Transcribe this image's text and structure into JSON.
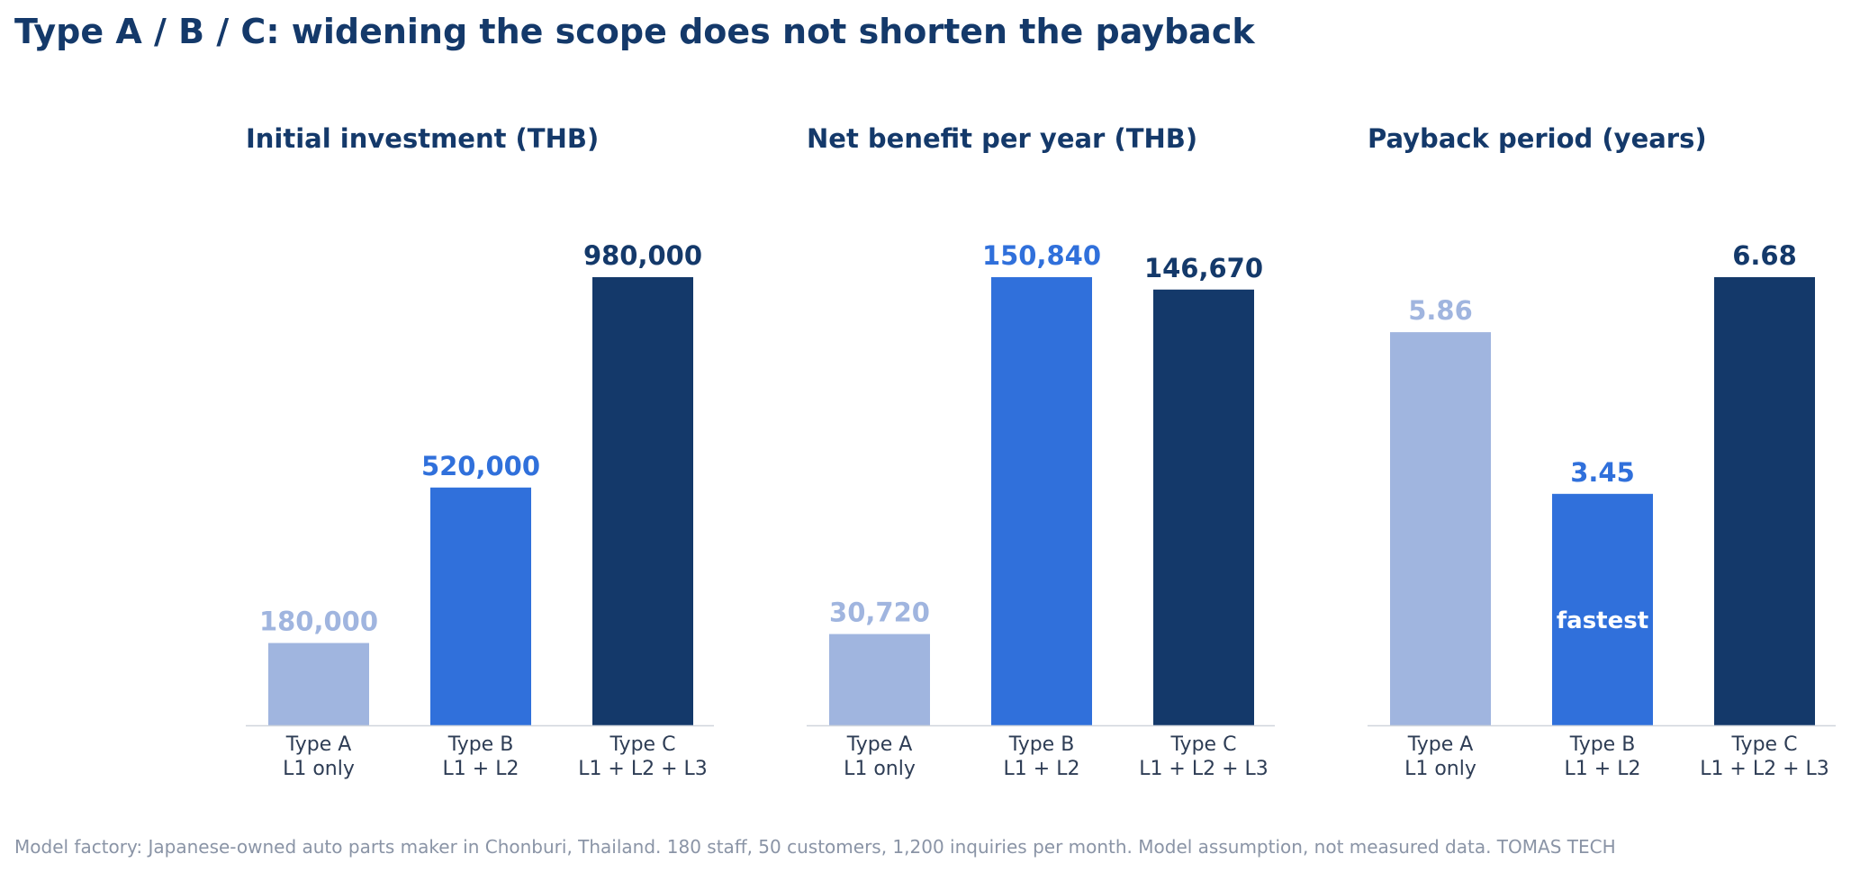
{
  "title": "Type A / B / C: widening the scope does not shorten the payback",
  "footer": "Model factory: Japanese-owned auto parts maker in Chonburi, Thailand. 180 staff, 50 customers, 1,200 inquiries per month. Model assumption, not measured data.   TOMAS TECH",
  "colors": {
    "type_a": "#a0b5df",
    "type_b": "#3070db",
    "type_c": "#14396a",
    "title": "#14396a",
    "axis": "#d0d5dd",
    "footer": "#8a94a6"
  },
  "chart_data": [
    {
      "type": "bar",
      "title": "Initial investment  (THB)",
      "categories": [
        "Type A\nL1 only",
        "Type B\nL1 + L2",
        "Type C\nL1 + L2 + L3"
      ],
      "values": [
        180000,
        520000,
        980000
      ],
      "value_labels": [
        "180,000",
        "520,000",
        "980,000"
      ],
      "ylim": [
        0,
        980000
      ],
      "grid": false
    },
    {
      "type": "bar",
      "title": "Net benefit per year  (THB)",
      "categories": [
        "Type A\nL1 only",
        "Type B\nL1 + L2",
        "Type C\nL1 + L2 + L3"
      ],
      "values": [
        30720,
        150840,
        146670
      ],
      "value_labels": [
        "30,720",
        "150,840",
        "146,670"
      ],
      "ylim": [
        0,
        150840
      ],
      "grid": false
    },
    {
      "type": "bar",
      "title": "Payback period  (years)",
      "categories": [
        "Type A\nL1 only",
        "Type B\nL1 + L2",
        "Type C\nL1 + L2 + L3"
      ],
      "values": [
        5.86,
        3.45,
        6.68
      ],
      "value_labels": [
        "5.86",
        "3.45",
        "6.68"
      ],
      "ylim": [
        0,
        6.68
      ],
      "grid": false,
      "annotations": [
        {
          "category_index": 1,
          "text": "fastest"
        }
      ]
    }
  ]
}
